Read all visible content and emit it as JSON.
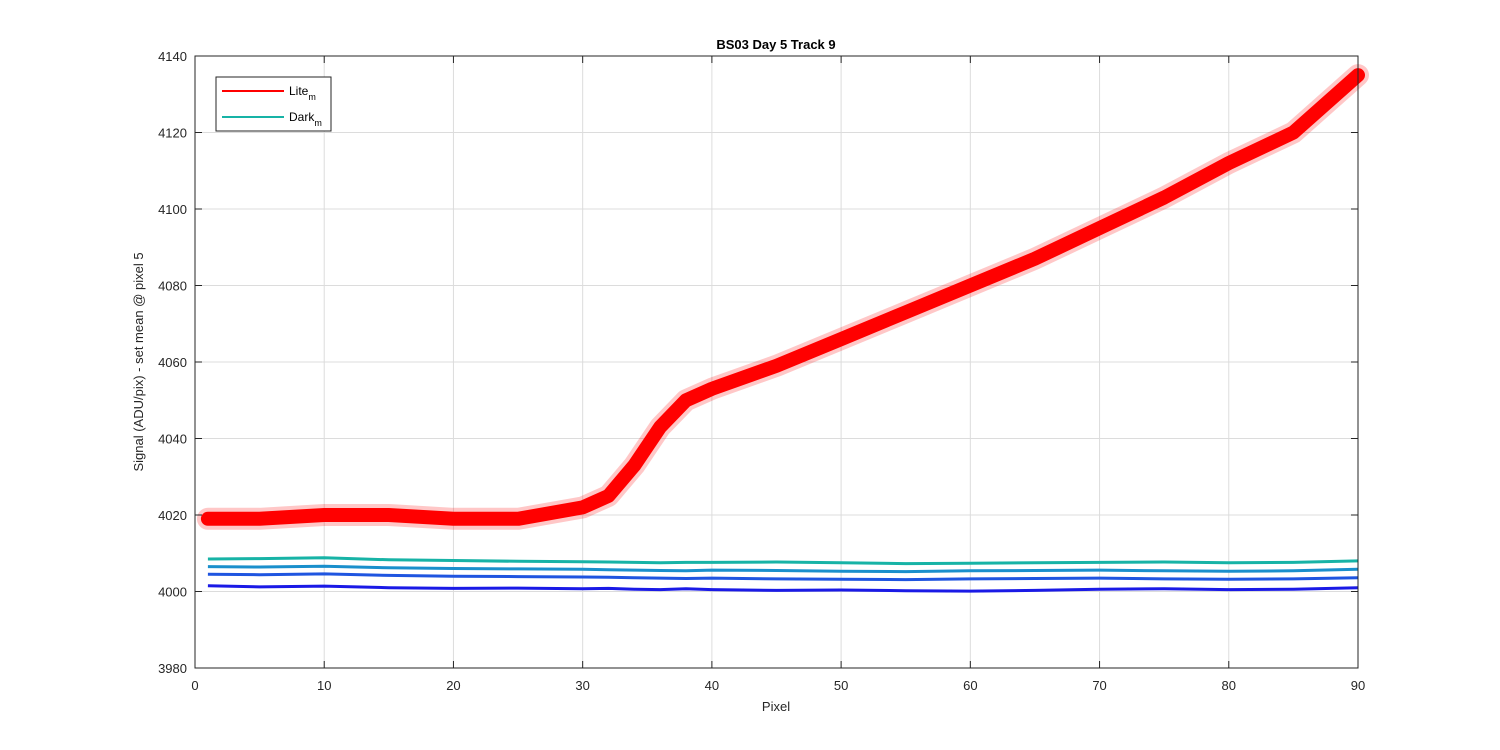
{
  "chart_data": {
    "type": "line",
    "title": "BS03 Day 5 Track 9",
    "xlabel": "Pixel",
    "ylabel": "Signal (ADU/pix) - set mean @ pixel 5",
    "xlim": [
      0,
      90
    ],
    "ylim": [
      3980,
      4140
    ],
    "xticks": [
      0,
      10,
      20,
      30,
      40,
      50,
      60,
      70,
      80,
      90
    ],
    "yticks": [
      3980,
      4000,
      4020,
      4040,
      4060,
      4080,
      4100,
      4120,
      4140
    ],
    "xtick_labels": [
      "0",
      "10",
      "20",
      "30",
      "40",
      "50",
      "60",
      "70",
      "80",
      "90"
    ],
    "ytick_labels": [
      "3980",
      "4000",
      "4020",
      "4040",
      "4060",
      "4080",
      "4100",
      "4120",
      "4140"
    ],
    "grid": true,
    "legend": {
      "position": "top-left",
      "entries": [
        {
          "base": "Lite",
          "sub": "m",
          "color": "#ff0000"
        },
        {
          "base": "Dark",
          "sub": "m",
          "color": "#17b3a6"
        }
      ]
    },
    "x": [
      1,
      5,
      10,
      15,
      20,
      25,
      30,
      32,
      34,
      36,
      38,
      40,
      45,
      50,
      55,
      60,
      65,
      70,
      75,
      80,
      85,
      90
    ],
    "series": [
      {
        "group": "lite",
        "color": "#ff0000",
        "values": [
          4019,
          4019,
          4020,
          4020,
          4019,
          4019,
          4022,
          4025,
          4033,
          4043,
          4050,
          4053,
          4059,
          4066,
          4073,
          4080,
          4087,
          4095,
          4103,
          4112,
          4120,
          4135
        ]
      },
      {
        "group": "dark",
        "color": "#17b3a6",
        "values": [
          4008.5,
          4008.6,
          4008.8,
          4008.3,
          4008.1,
          4007.9,
          4007.8,
          4007.7,
          4007.6,
          4007.5,
          4007.6,
          4007.6,
          4007.7,
          4007.5,
          4007.3,
          4007.4,
          4007.5,
          4007.6,
          4007.7,
          4007.5,
          4007.6,
          4008.0
        ]
      },
      {
        "group": "dark",
        "color": "#1a8fcc",
        "values": [
          4006.5,
          4006.4,
          4006.6,
          4006.2,
          4006.0,
          4005.9,
          4005.8,
          4005.7,
          4005.6,
          4005.5,
          4005.4,
          4005.6,
          4005.5,
          4005.3,
          4005.2,
          4005.4,
          4005.5,
          4005.6,
          4005.4,
          4005.3,
          4005.4,
          4005.8
        ]
      },
      {
        "group": "dark",
        "color": "#1f55e0",
        "values": [
          4004.5,
          4004.4,
          4004.6,
          4004.2,
          4004.0,
          4003.9,
          4003.8,
          4003.7,
          4003.6,
          4003.5,
          4003.4,
          4003.5,
          4003.3,
          4003.2,
          4003.1,
          4003.3,
          4003.4,
          4003.5,
          4003.3,
          4003.2,
          4003.3,
          4003.6
        ]
      },
      {
        "group": "dark",
        "color": "#1a1ae6",
        "values": [
          4001.5,
          4001.2,
          4001.4,
          4001.0,
          4000.8,
          4000.9,
          4000.7,
          4000.8,
          4000.6,
          4000.5,
          4000.7,
          4000.5,
          4000.3,
          4000.4,
          4000.2,
          4000.1,
          4000.3,
          4000.6,
          4000.7,
          4000.5,
          4000.6,
          4001.0
        ]
      }
    ]
  }
}
